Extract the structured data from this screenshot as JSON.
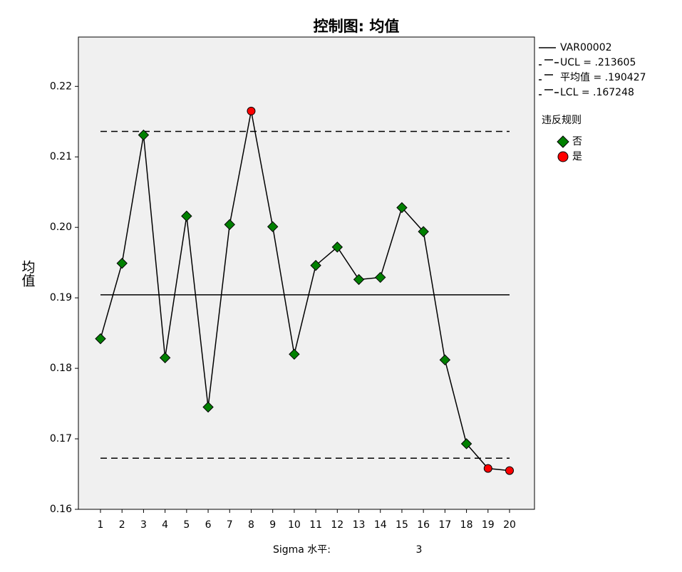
{
  "chart_data": {
    "type": "line",
    "title": "控制图: 均值",
    "y_label": "均值",
    "x_label": "Sigma 水平:",
    "sigma_level": 3,
    "categories": [
      "1",
      "2",
      "3",
      "4",
      "5",
      "6",
      "7",
      "8",
      "9",
      "10",
      "11",
      "12",
      "13",
      "14",
      "15",
      "16",
      "17",
      "18",
      "19",
      "20"
    ],
    "series": [
      {
        "name": "VAR00002",
        "color": "#000000",
        "values": [
          0.1842,
          0.1949,
          0.2131,
          0.1815,
          0.2016,
          0.1745,
          0.2004,
          0.2165,
          0.2001,
          0.182,
          0.1946,
          0.1972,
          0.1926,
          0.1929,
          0.2028,
          0.1994,
          0.1812,
          0.1693,
          0.1658,
          0.1655
        ]
      }
    ],
    "control_lines": [
      {
        "value": 0.213605,
        "label": "UCL = .213605",
        "dashed": true
      },
      {
        "value": 0.190427,
        "label": "平均值 = .190427",
        "dashed": false
      },
      {
        "value": 0.167248,
        "label": "LCL = .167248",
        "dashed": true
      }
    ],
    "legend_title": "违反规则",
    "rule_groups": [
      {
        "name": "否",
        "color": "#008000",
        "shape": "diamond"
      },
      {
        "name": "是",
        "color": "#ff0000",
        "shape": "circle"
      }
    ],
    "point_group": [
      0,
      0,
      0,
      0,
      0,
      0,
      0,
      1,
      0,
      0,
      0,
      0,
      0,
      0,
      0,
      0,
      0,
      0,
      1,
      1
    ],
    "ylim": [
      0.16,
      0.227
    ],
    "yticks": [
      0.16,
      0.17,
      0.18,
      0.19,
      {
        "value": 0.2,
        "label": "0.20"
      },
      0.21,
      0.22
    ],
    "plot_background": "#f0f0f0"
  }
}
